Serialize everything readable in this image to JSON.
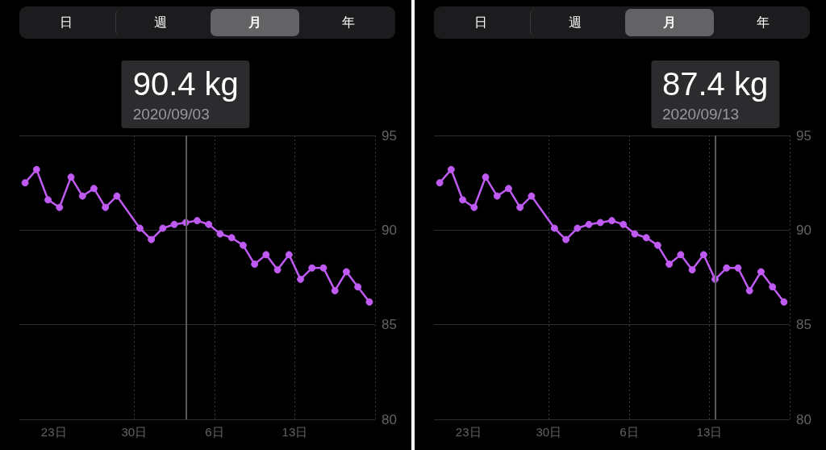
{
  "chart_data": [
    {
      "type": "line",
      "x": [
        "2020-08-20T12:00",
        "2020-08-21T12:00",
        "2020-08-22T12:00",
        "2020-08-23T12:00",
        "2020-08-24T12:00",
        "2020-08-25T12:00",
        "2020-08-26T12:00",
        "2020-08-27T12:00",
        "2020-08-28T12:00",
        "2020-08-30T12:00",
        "2020-08-31T12:00",
        "2020-09-01T12:00",
        "2020-09-02T12:00",
        "2020-09-03T12:00",
        "2020-09-04T12:00",
        "2020-09-05T12:00",
        "2020-09-06T12:00",
        "2020-09-07T12:00",
        "2020-09-08T12:00",
        "2020-09-09T12:00",
        "2020-09-10T12:00",
        "2020-09-11T12:00",
        "2020-09-12T12:00",
        "2020-09-13T12:00",
        "2020-09-14T12:00",
        "2020-09-15T12:00",
        "2020-09-16T12:00",
        "2020-09-17T12:00",
        "2020-09-18T12:00",
        "2020-09-19T12:00"
      ],
      "series": [
        {
          "color": "#bf5af2",
          "values": [
            92.5,
            93.2,
            91.6,
            91.2,
            92.8,
            91.8,
            92.2,
            91.2,
            91.8,
            90.1,
            89.5,
            90.1,
            90.3,
            90.4,
            90.5,
            90.3,
            89.8,
            89.6,
            89.2,
            88.2,
            88.7,
            87.9,
            88.7,
            87.4,
            88.0,
            88.0,
            86.8,
            87.8,
            87.0,
            86.2
          ]
        }
      ],
      "xlim": [
        "2020-08-20",
        "2020-09-20"
      ],
      "xticks": [
        {
          "value": "2020-08-23",
          "label": "23日"
        },
        {
          "value": "2020-08-30",
          "label": "30日"
        },
        {
          "value": "2020-09-06",
          "label": "6日"
        },
        {
          "value": "2020-09-13",
          "label": "13日"
        },
        {
          "value": "2020-09-20",
          "label": null
        }
      ],
      "ylim": [
        80,
        95
      ],
      "yticks": [
        80,
        85,
        90,
        95
      ],
      "grid": true,
      "marker": "circle",
      "line_style": "solid",
      "ref_lines": [
        {
          "axis": "x",
          "value": "2020-09-03T12:00",
          "color": "#5a5a5e"
        }
      ],
      "annotations": [
        "日",
        "週",
        "月",
        "年",
        "90.4 kg",
        "2020/09/03"
      ]
    },
    {
      "type": "line",
      "x": [
        "2020-08-20T12:00",
        "2020-08-21T12:00",
        "2020-08-22T12:00",
        "2020-08-23T12:00",
        "2020-08-24T12:00",
        "2020-08-25T12:00",
        "2020-08-26T12:00",
        "2020-08-27T12:00",
        "2020-08-28T12:00",
        "2020-08-30T12:00",
        "2020-08-31T12:00",
        "2020-09-01T12:00",
        "2020-09-02T12:00",
        "2020-09-03T12:00",
        "2020-09-04T12:00",
        "2020-09-05T12:00",
        "2020-09-06T12:00",
        "2020-09-07T12:00",
        "2020-09-08T12:00",
        "2020-09-09T12:00",
        "2020-09-10T12:00",
        "2020-09-11T12:00",
        "2020-09-12T12:00",
        "2020-09-13T12:00",
        "2020-09-14T12:00",
        "2020-09-15T12:00",
        "2020-09-16T12:00",
        "2020-09-17T12:00",
        "2020-09-18T12:00",
        "2020-09-19T12:00"
      ],
      "series": [
        {
          "color": "#bf5af2",
          "values": [
            92.5,
            93.2,
            91.6,
            91.2,
            92.8,
            91.8,
            92.2,
            91.2,
            91.8,
            90.1,
            89.5,
            90.1,
            90.3,
            90.4,
            90.5,
            90.3,
            89.8,
            89.6,
            89.2,
            88.2,
            88.7,
            87.9,
            88.7,
            87.4,
            88.0,
            88.0,
            86.8,
            87.8,
            87.0,
            86.2
          ]
        }
      ],
      "xlim": [
        "2020-08-20",
        "2020-09-20"
      ],
      "xticks": [
        {
          "value": "2020-08-23",
          "label": "23日"
        },
        {
          "value": "2020-08-30",
          "label": "30日"
        },
        {
          "value": "2020-09-06",
          "label": "6日"
        },
        {
          "value": "2020-09-13",
          "label": "13日"
        },
        {
          "value": "2020-09-20",
          "label": null
        }
      ],
      "ylim": [
        80,
        95
      ],
      "yticks": [
        80,
        85,
        90,
        95
      ],
      "grid": true,
      "marker": "circle",
      "line_style": "solid",
      "ref_lines": [
        {
          "axis": "x",
          "value": "2020-09-13T12:00",
          "color": "#5a5a5e"
        }
      ],
      "annotations": [
        "日",
        "週",
        "月",
        "年",
        "87.4 kg",
        "2020/09/13"
      ]
    }
  ]
}
